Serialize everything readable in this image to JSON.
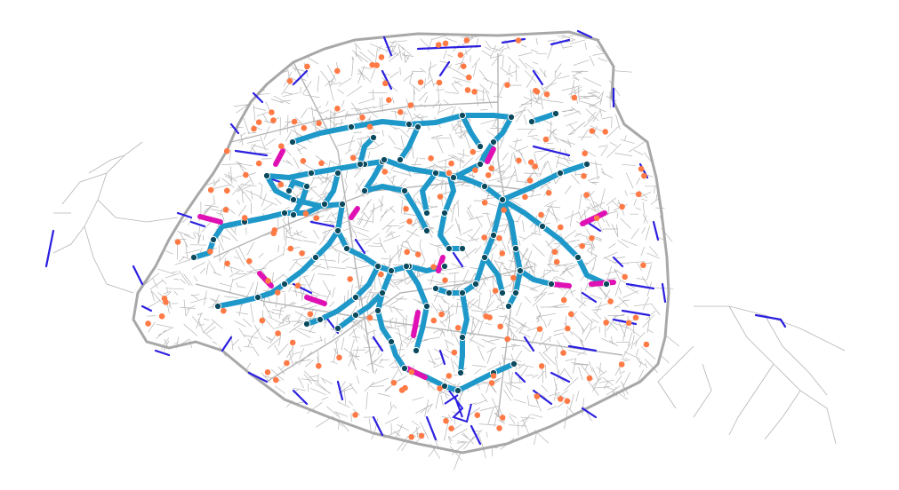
{
  "map": {
    "style": {
      "background": "#ffffff",
      "street_color": "#b5b5b5",
      "boundary_color": "#a8a8a8",
      "bike_lane_color": "#2b1fe0",
      "network_color": "#1e98c9",
      "network_gap_color": "#e011b4",
      "node_color": "#0b4a5e",
      "poi_color": "#ff7a45"
    },
    "layers": {
      "streets": "street-grid",
      "boundary": "city-boundary",
      "bike_lanes": "existing-bike-lanes",
      "network": "proposed-network",
      "gaps": "network-gaps",
      "nodes": "network-nodes",
      "pois": "points-of-interest"
    }
  }
}
